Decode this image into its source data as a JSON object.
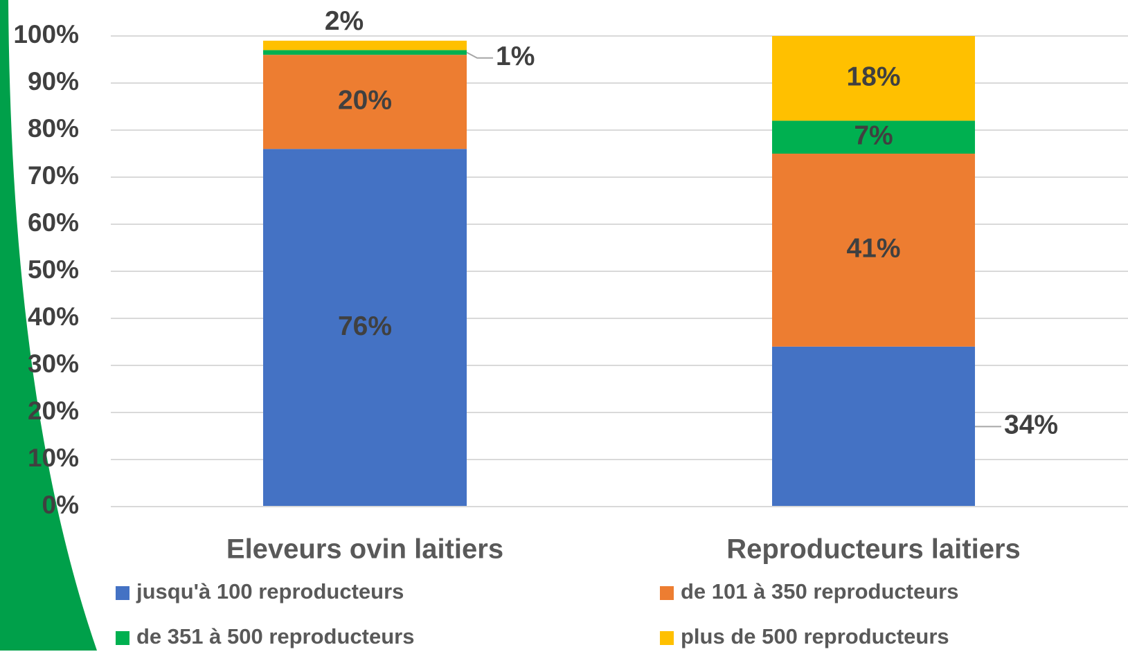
{
  "chart_data": {
    "type": "stacked_bar",
    "categories": [
      "Eleveurs ovin laitiers",
      "Reproducteurs laitiers"
    ],
    "series": [
      {
        "name": "jusqu'à 100 reproducteurs",
        "color": "#4472c4",
        "values": [
          76,
          34
        ],
        "value_labels": [
          "76%",
          "34%"
        ]
      },
      {
        "name": "de 101 à 350 reproducteurs",
        "color": "#ed7d31",
        "values": [
          20,
          41
        ],
        "value_labels": [
          "20%",
          "41%"
        ]
      },
      {
        "name": "de 351 à 500 reproducteurs",
        "color": "#00b050",
        "values": [
          1,
          7
        ],
        "value_labels": [
          "1%",
          "7%"
        ]
      },
      {
        "name": "plus de 500 reproducteurs",
        "color": "#ffc000",
        "values": [
          2,
          18
        ],
        "value_labels": [
          "2%",
          "18%"
        ]
      }
    ],
    "ylim": [
      0,
      100
    ],
    "yticks": [
      {
        "value": 0,
        "label": "0%"
      },
      {
        "value": 10,
        "label": "10%"
      },
      {
        "value": 20,
        "label": "20%"
      },
      {
        "value": 30,
        "label": "30%"
      },
      {
        "value": 40,
        "label": "40%"
      },
      {
        "value": 50,
        "label": "50%"
      },
      {
        "value": 60,
        "label": "60%"
      },
      {
        "value": 70,
        "label": "70%"
      },
      {
        "value": 80,
        "label": "80%"
      },
      {
        "value": 90,
        "label": "90%"
      },
      {
        "value": 100,
        "label": "100%"
      }
    ],
    "grid": true,
    "legend": "bottom"
  }
}
